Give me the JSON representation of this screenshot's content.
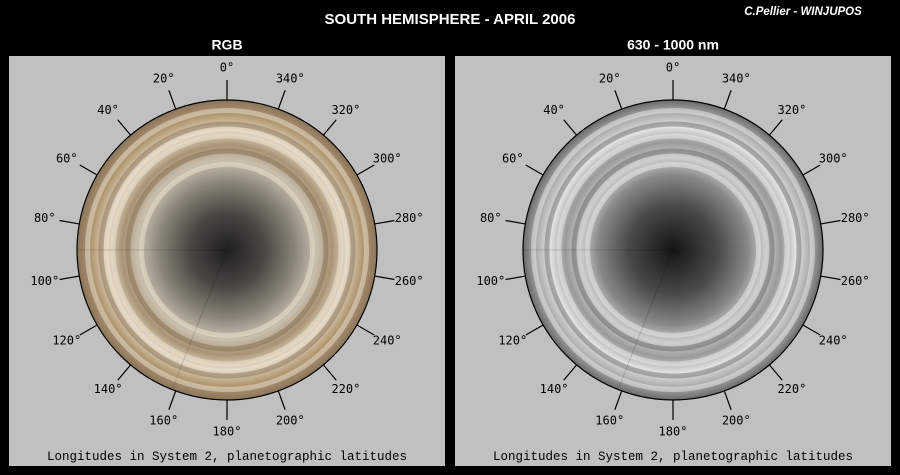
{
  "title": "SOUTH HEMISPHERE - APRIL 2006",
  "credit": "C.Pellier - WINJUPOS",
  "panels": [
    {
      "header": "RGB",
      "longitudes": [
        "0°",
        "20°",
        "40°",
        "60°",
        "80°",
        "100°",
        "120°",
        "140°",
        "160°",
        "180°",
        "200°",
        "220°",
        "240°",
        "260°",
        "280°",
        "300°",
        "320°",
        "340°"
      ],
      "footer": "Longitudes in System 2, planetographic latitudes"
    },
    {
      "header": "630 - 1000 nm",
      "longitudes": [
        "0°",
        "20°",
        "40°",
        "60°",
        "80°",
        "100°",
        "120°",
        "140°",
        "160°",
        "180°",
        "200°",
        "220°",
        "240°",
        "260°",
        "280°",
        "300°",
        "320°",
        "340°"
      ],
      "footer": "Longitudes in System 2, planetographic latitudes"
    }
  ]
}
